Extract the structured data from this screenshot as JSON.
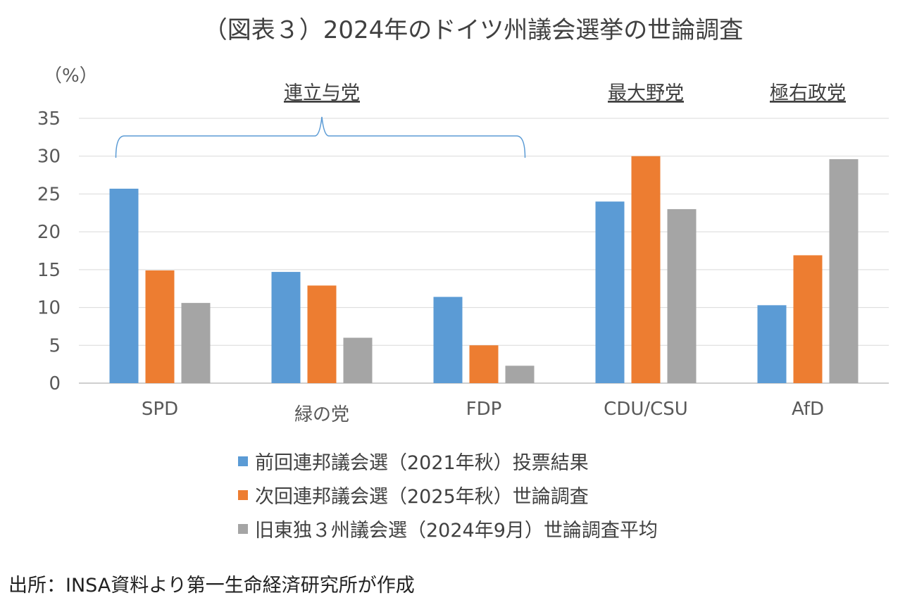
{
  "chart_data": {
    "type": "bar",
    "title": "（図表３）2024年のドイツ州議会選挙の世論調査",
    "y_unit_label": "（%）",
    "ylim": [
      0,
      35
    ],
    "yticks": [
      0,
      5,
      10,
      15,
      20,
      25,
      30,
      35
    ],
    "grid": true,
    "categories": [
      "SPD",
      "緑の党",
      "FDP",
      "CDU/CSU",
      "AfD"
    ],
    "series": [
      {
        "name": "前回連邦議会選（2021年秋）投票結果",
        "color": "#5B9BD5",
        "values": [
          25.7,
          14.7,
          11.4,
          24.0,
          10.3
        ]
      },
      {
        "name": "次回連邦議会選（2025年秋）世論調査",
        "color": "#ED7D31",
        "values": [
          14.9,
          12.9,
          5.0,
          30.0,
          16.9
        ]
      },
      {
        "name": "旧東独３州議会選（2024年9月）世論調査平均",
        "color": "#A5A5A5",
        "values": [
          10.6,
          6.0,
          2.3,
          23.0,
          29.6
        ]
      }
    ],
    "group_labels": [
      {
        "text": "連立与党",
        "categories": [
          "SPD",
          "緑の党",
          "FDP"
        ]
      },
      {
        "text": "最大野党",
        "categories": [
          "CDU/CSU"
        ]
      },
      {
        "text": "極右政党",
        "categories": [
          "AfD"
        ]
      }
    ],
    "legend_position": "bottom"
  },
  "source_note": "出所：INSA資料より第一生命経済研究所が作成"
}
